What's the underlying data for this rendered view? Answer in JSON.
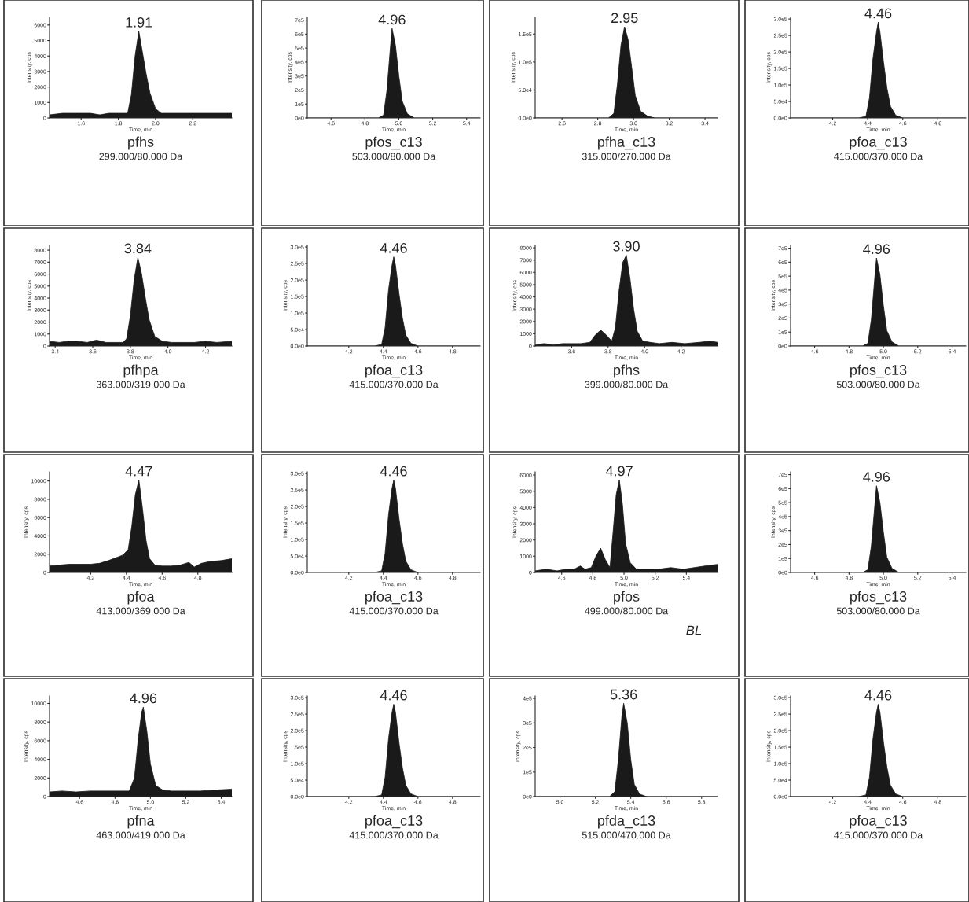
{
  "chart_data": [
    {
      "type": "area",
      "title": "pfhs",
      "subtitle": "299.000/80.000 Da",
      "xlabel": "Time, min",
      "ylabel": "Intensity, cps",
      "color": "#1a1a1a",
      "x": [
        1.43,
        1.5,
        1.55,
        1.6,
        1.65,
        1.7,
        1.75,
        1.8,
        1.83,
        1.85,
        1.87,
        1.89,
        1.91,
        1.93,
        1.95,
        1.97,
        2.0,
        2.03,
        2.06,
        2.1,
        2.15,
        2.2,
        2.25,
        2.3,
        2.35,
        2.41
      ],
      "values": [
        200,
        300,
        300,
        300,
        300,
        200,
        300,
        300,
        300,
        300,
        1500,
        4000,
        5600,
        4200,
        2800,
        1600,
        600,
        300,
        300,
        300,
        300,
        300,
        300,
        300,
        300,
        300
      ],
      "xlim": [
        1.43,
        2.41
      ],
      "ylim": [
        0,
        6500
      ],
      "xticks": [
        1.6,
        1.8,
        {
          "value": 2.0,
          "label": "2.0"
        },
        2.2
      ],
      "yticks": [
        0,
        1000,
        2000,
        3000,
        4000,
        5000,
        6000
      ],
      "annotations": [
        {
          "text": "1.91",
          "x": 1.91,
          "y": 5600
        }
      ]
    },
    {
      "type": "area",
      "title": "pfos_c13",
      "subtitle": "503.000/80.000 Da",
      "xlabel": "Time, min",
      "ylabel": "Intensity, cps",
      "color": "#1a1a1a",
      "x": [
        4.46,
        4.88,
        4.91,
        4.93,
        4.95,
        4.96,
        4.98,
        5.0,
        5.02,
        5.05,
        5.09,
        5.48
      ],
      "values": [
        0,
        0,
        20000,
        200000,
        500000,
        640000,
        520000,
        300000,
        120000,
        30000,
        0,
        0
      ],
      "xlim": [
        4.46,
        5.48
      ],
      "ylim": [
        0,
        720000
      ],
      "xticks": [
        4.6,
        4.8,
        {
          "value": 5.0,
          "label": "5.0"
        },
        5.2,
        5.4
      ],
      "yticks": [
        {
          "value": 0,
          "label": "0e0"
        },
        {
          "value": 100000,
          "label": "1e5"
        },
        {
          "value": 200000,
          "label": "2e5"
        },
        {
          "value": 300000,
          "label": "3e5"
        },
        {
          "value": 400000,
          "label": "4e5"
        },
        {
          "value": 500000,
          "label": "5e5"
        },
        {
          "value": 600000,
          "label": "6e5"
        },
        {
          "value": 700000,
          "label": "7e5"
        }
      ],
      "annotations": [
        {
          "text": "4.96",
          "x": 4.96,
          "y": 640000
        }
      ]
    },
    {
      "type": "area",
      "title": "pfha_c13",
      "subtitle": "315.000/270.000 Da",
      "xlabel": "Time, min",
      "ylabel": "Intensity, cps",
      "color": "#1a1a1a",
      "x": [
        2.45,
        2.86,
        2.89,
        2.91,
        2.93,
        2.95,
        2.97,
        2.99,
        3.01,
        3.04,
        3.08,
        3.12,
        3.47
      ],
      "values": [
        0,
        0,
        8000,
        60000,
        130000,
        163000,
        140000,
        90000,
        40000,
        12000,
        3000,
        0,
        0
      ],
      "xlim": [
        2.45,
        3.47
      ],
      "ylim": [
        0,
        180000
      ],
      "xticks": [
        2.6,
        2.8,
        {
          "value": 3.0,
          "label": "3.0"
        },
        3.2,
        3.4
      ],
      "yticks": [
        {
          "value": 0,
          "label": "0.0e0"
        },
        {
          "value": 50000,
          "label": "5.0e4"
        },
        {
          "value": 100000,
          "label": "1.0e5"
        },
        {
          "value": 150000,
          "label": "1.5e5"
        }
      ],
      "annotations": [
        {
          "text": "2.95",
          "x": 2.95,
          "y": 163000
        }
      ]
    },
    {
      "type": "area",
      "title": "pfoa_c13",
      "subtitle": "415.000/370.000 Da",
      "xlabel": "Time, min",
      "ylabel": "Intensity, cps",
      "color": "#1a1a1a",
      "x": [
        3.96,
        4.35,
        4.39,
        4.41,
        4.43,
        4.45,
        4.46,
        4.47,
        4.49,
        4.51,
        4.53,
        4.56,
        4.6,
        4.96
      ],
      "values": [
        0,
        0,
        5000,
        60000,
        180000,
        260000,
        290000,
        260000,
        170000,
        90000,
        35000,
        8000,
        0,
        0
      ],
      "xlim": [
        3.96,
        4.96
      ],
      "ylim": [
        0,
        305000
      ],
      "xticks": [
        4.2,
        4.4,
        4.6,
        4.8
      ],
      "yticks": [
        {
          "value": 0,
          "label": "0.0e0"
        },
        {
          "value": 50000,
          "label": "5.0e4"
        },
        {
          "value": 100000,
          "label": "1.0e5"
        },
        {
          "value": 150000,
          "label": "1.5e5"
        },
        {
          "value": 200000,
          "label": "2.0e5"
        },
        {
          "value": 250000,
          "label": "2.5e5"
        },
        {
          "value": 300000,
          "label": "3.0e5"
        }
      ],
      "annotations": [
        {
          "text": "4.46",
          "x": 4.46,
          "y": 290000
        }
      ]
    },
    {
      "type": "area",
      "title": "pfhpa",
      "subtitle": "363.000/319.000 Da",
      "xlabel": "Time, min",
      "ylabel": "Intensity, cps",
      "color": "#1a1a1a",
      "x": [
        3.37,
        3.42,
        3.47,
        3.52,
        3.57,
        3.62,
        3.67,
        3.72,
        3.76,
        3.78,
        3.8,
        3.82,
        3.84,
        3.86,
        3.88,
        3.9,
        3.93,
        3.97,
        4.02,
        4.08,
        4.14,
        4.2,
        4.26,
        4.34
      ],
      "values": [
        400,
        300,
        400,
        400,
        300,
        500,
        300,
        300,
        300,
        600,
        2500,
        5500,
        7400,
        6000,
        4000,
        2200,
        800,
        400,
        300,
        300,
        300,
        400,
        300,
        400
      ],
      "xlim": [
        3.37,
        4.34
      ],
      "ylim": [
        0,
        8400
      ],
      "xticks": [
        3.4,
        3.6,
        3.8,
        {
          "value": 4.0,
          "label": "4.0"
        },
        4.2
      ],
      "yticks": [
        0,
        1000,
        2000,
        3000,
        4000,
        5000,
        6000,
        7000,
        8000
      ],
      "annotations": [
        {
          "text": "3.84",
          "x": 3.84,
          "y": 7400
        }
      ]
    },
    {
      "type": "area",
      "title": "pfoa_c13",
      "subtitle": "415.000/370.000 Da",
      "xlabel": "Time, min",
      "ylabel": "Intensity, cps",
      "color": "#1a1a1a",
      "x": [
        3.96,
        4.35,
        4.39,
        4.41,
        4.43,
        4.45,
        4.46,
        4.47,
        4.49,
        4.51,
        4.53,
        4.56,
        4.6,
        4.96
      ],
      "values": [
        0,
        0,
        5000,
        55000,
        170000,
        245000,
        270000,
        245000,
        160000,
        85000,
        33000,
        8000,
        0,
        0
      ],
      "xlim": [
        3.96,
        4.96
      ],
      "ylim": [
        0,
        305000
      ],
      "xticks": [
        4.2,
        4.4,
        4.6,
        4.8
      ],
      "yticks": [
        {
          "value": 0,
          "label": "0.0e0"
        },
        {
          "value": 50000,
          "label": "5.0e4"
        },
        {
          "value": 100000,
          "label": "1.0e5"
        },
        {
          "value": 150000,
          "label": "1.5e5"
        },
        {
          "value": 200000,
          "label": "2.0e5"
        },
        {
          "value": 250000,
          "label": "2.5e5"
        },
        {
          "value": 300000,
          "label": "3.0e5"
        }
      ],
      "annotations": [
        {
          "text": "4.46",
          "x": 4.46,
          "y": 270000
        }
      ]
    },
    {
      "type": "area",
      "title": "pfhs",
      "subtitle": "399.000/80.000 Da",
      "xlabel": "Time, min",
      "ylabel": "Intensity, cps",
      "color": "#1a1a1a",
      "x": [
        3.4,
        3.45,
        3.5,
        3.55,
        3.6,
        3.65,
        3.7,
        3.73,
        3.76,
        3.79,
        3.82,
        3.84,
        3.86,
        3.88,
        3.9,
        3.92,
        3.94,
        3.96,
        3.99,
        4.03,
        4.08,
        4.15,
        4.22,
        4.3,
        4.36,
        4.4
      ],
      "values": [
        100,
        200,
        100,
        200,
        200,
        200,
        300,
        900,
        1300,
        900,
        400,
        1500,
        4500,
        6800,
        7400,
        5500,
        3000,
        1200,
        400,
        300,
        200,
        300,
        200,
        300,
        400,
        300
      ],
      "xlim": [
        3.4,
        4.4
      ],
      "ylim": [
        0,
        8200
      ],
      "xticks": [
        3.6,
        3.8,
        {
          "value": 4.0,
          "label": "4.0"
        },
        4.2
      ],
      "yticks": [
        0,
        1000,
        2000,
        3000,
        4000,
        5000,
        6000,
        7000,
        8000
      ],
      "annotations": [
        {
          "text": "3.90",
          "x": 3.9,
          "y": 7400
        }
      ]
    },
    {
      "type": "area",
      "title": "pfos_c13",
      "subtitle": "503.000/80.000 Da",
      "xlabel": "Time, min",
      "ylabel": "Intensity, cps",
      "color": "#1a1a1a",
      "x": [
        4.46,
        4.88,
        4.91,
        4.93,
        4.95,
        4.96,
        4.98,
        5.0,
        5.02,
        5.05,
        5.09,
        5.48
      ],
      "values": [
        0,
        0,
        20000,
        190000,
        490000,
        630000,
        510000,
        290000,
        110000,
        30000,
        0,
        0
      ],
      "xlim": [
        4.46,
        5.48
      ],
      "ylim": [
        0,
        720000
      ],
      "xticks": [
        4.6,
        4.8,
        {
          "value": 5.0,
          "label": "5.0"
        },
        5.2,
        5.4
      ],
      "yticks": [
        {
          "value": 0,
          "label": "0e0"
        },
        {
          "value": 100000,
          "label": "1e5"
        },
        {
          "value": 200000,
          "label": "2e5"
        },
        {
          "value": 300000,
          "label": "3e5"
        },
        {
          "value": 400000,
          "label": "4e5"
        },
        {
          "value": 500000,
          "label": "5e5"
        },
        {
          "value": 600000,
          "label": "6e5"
        },
        {
          "value": 700000,
          "label": "7e5"
        }
      ],
      "annotations": [
        {
          "text": "4.96",
          "x": 4.96,
          "y": 630000
        }
      ]
    },
    {
      "type": "area",
      "title": "pfoa",
      "subtitle": "413.000/369.000 Da",
      "xlabel": "Time, min",
      "ylabel": "Intensity, cps",
      "color": "#1a1a1a",
      "x": [
        3.97,
        4.02,
        4.08,
        4.14,
        4.2,
        4.25,
        4.3,
        4.34,
        4.38,
        4.41,
        4.43,
        4.45,
        4.47,
        4.49,
        4.51,
        4.53,
        4.56,
        4.6,
        4.65,
        4.7,
        4.75,
        4.78,
        4.82,
        4.87,
        4.93,
        4.99
      ],
      "values": [
        700,
        800,
        900,
        900,
        900,
        1000,
        1300,
        1600,
        1900,
        2500,
        5000,
        8500,
        10100,
        7000,
        3500,
        1500,
        800,
        700,
        700,
        800,
        1100,
        600,
        1000,
        1200,
        1300,
        1500
      ],
      "xlim": [
        3.97,
        4.99
      ],
      "ylim": [
        0,
        11000
      ],
      "xticks": [
        4.2,
        4.4,
        4.6,
        4.8
      ],
      "yticks": [
        0,
        2000,
        4000,
        6000,
        8000,
        10000
      ],
      "annotations": [
        {
          "text": "4.47",
          "x": 4.47,
          "y": 10100
        }
      ]
    },
    {
      "type": "area",
      "title": "pfoa_c13",
      "subtitle": "415.000/370.000 Da",
      "xlabel": "Time, min",
      "ylabel": "Intensity, cps",
      "color": "#1a1a1a",
      "x": [
        3.96,
        4.35,
        4.39,
        4.41,
        4.43,
        4.45,
        4.46,
        4.47,
        4.49,
        4.51,
        4.53,
        4.56,
        4.6,
        4.96
      ],
      "values": [
        0,
        0,
        5000,
        58000,
        175000,
        255000,
        280000,
        255000,
        165000,
        88000,
        34000,
        8000,
        0,
        0
      ],
      "xlim": [
        3.96,
        4.96
      ],
      "ylim": [
        0,
        305000
      ],
      "xticks": [
        4.2,
        4.4,
        4.6,
        4.8
      ],
      "yticks": [
        {
          "value": 0,
          "label": "0.0e0"
        },
        {
          "value": 50000,
          "label": "5.0e4"
        },
        {
          "value": 100000,
          "label": "1.0e5"
        },
        {
          "value": 150000,
          "label": "1.5e5"
        },
        {
          "value": 200000,
          "label": "2.0e5"
        },
        {
          "value": 250000,
          "label": "2.5e5"
        },
        {
          "value": 300000,
          "label": "3.0e5"
        }
      ],
      "annotations": [
        {
          "text": "4.46",
          "x": 4.46,
          "y": 280000
        }
      ]
    },
    {
      "type": "area",
      "title": "pfos",
      "subtitle": "499.000/80.000 Da",
      "xlabel": "Time, min",
      "ylabel": "Intensity, cps",
      "color": "#1a1a1a",
      "x": [
        4.43,
        4.5,
        4.57,
        4.63,
        4.68,
        4.72,
        4.75,
        4.79,
        4.82,
        4.85,
        4.88,
        4.91,
        4.93,
        4.95,
        4.97,
        4.99,
        5.01,
        5.04,
        5.08,
        5.15,
        5.22,
        5.3,
        5.38,
        5.45,
        5.52,
        5.6
      ],
      "values": [
        100,
        200,
        100,
        200,
        200,
        400,
        200,
        300,
        1000,
        1500,
        800,
        300,
        2500,
        4800,
        5700,
        4200,
        1800,
        600,
        200,
        200,
        200,
        300,
        200,
        300,
        400,
        500
      ],
      "xlim": [
        4.43,
        5.6
      ],
      "ylim": [
        0,
        6200
      ],
      "xticks": [
        4.6,
        4.8,
        {
          "value": 5.0,
          "label": "5.0"
        },
        5.2,
        5.4
      ],
      "yticks": [
        0,
        1000,
        2000,
        3000,
        4000,
        5000,
        6000
      ],
      "annotations": [
        {
          "text": "4.97",
          "x": 4.97,
          "y": 5700
        },
        "BL"
      ]
    },
    {
      "type": "area",
      "title": "pfos_c13",
      "subtitle": "503.000/80.000 Da",
      "xlabel": "Time, min",
      "ylabel": "Intensity, cps",
      "color": "#1a1a1a",
      "x": [
        4.46,
        4.88,
        4.91,
        4.93,
        4.95,
        4.96,
        4.98,
        5.0,
        5.02,
        5.05,
        5.09,
        5.48
      ],
      "values": [
        0,
        0,
        20000,
        190000,
        480000,
        620000,
        500000,
        290000,
        110000,
        30000,
        0,
        0
      ],
      "xlim": [
        4.46,
        5.48
      ],
      "ylim": [
        0,
        720000
      ],
      "xticks": [
        4.6,
        4.8,
        {
          "value": 5.0,
          "label": "5.0"
        },
        5.2,
        5.4
      ],
      "yticks": [
        {
          "value": 0,
          "label": "0e0"
        },
        {
          "value": 100000,
          "label": "1e5"
        },
        {
          "value": 200000,
          "label": "2e5"
        },
        {
          "value": 300000,
          "label": "3e5"
        },
        {
          "value": 400000,
          "label": "4e5"
        },
        {
          "value": 500000,
          "label": "5e5"
        },
        {
          "value": 600000,
          "label": "6e5"
        },
        {
          "value": 700000,
          "label": "7e5"
        }
      ],
      "annotations": [
        {
          "text": "4.96",
          "x": 4.96,
          "y": 620000
        }
      ]
    },
    {
      "type": "area",
      "title": "pfna",
      "subtitle": "463.000/419.000 Da",
      "xlabel": "Time, min",
      "ylabel": "Intensity, cps",
      "color": "#1a1a1a",
      "x": [
        4.43,
        4.5,
        4.58,
        4.66,
        4.74,
        4.82,
        4.88,
        4.91,
        4.93,
        4.95,
        4.96,
        4.98,
        5.0,
        5.03,
        5.07,
        5.12,
        5.2,
        5.28,
        5.36,
        5.46
      ],
      "values": [
        500,
        600,
        500,
        600,
        600,
        600,
        600,
        2000,
        6000,
        9000,
        9600,
        7000,
        3500,
        1200,
        700,
        600,
        600,
        600,
        700,
        800
      ],
      "xlim": [
        4.43,
        5.46
      ],
      "ylim": [
        0,
        10800
      ],
      "xticks": [
        4.6,
        4.8,
        {
          "value": 5.0,
          "label": "5.0"
        },
        5.2,
        5.4
      ],
      "yticks": [
        0,
        2000,
        4000,
        6000,
        8000,
        10000
      ],
      "annotations": [
        {
          "text": "4.96",
          "x": 4.96,
          "y": 9600
        }
      ]
    },
    {
      "type": "area",
      "title": "pfoa_c13",
      "subtitle": "415.000/370.000 Da",
      "xlabel": "Time, min",
      "ylabel": "Intensity, cps",
      "color": "#1a1a1a",
      "x": [
        3.96,
        4.35,
        4.39,
        4.41,
        4.43,
        4.45,
        4.46,
        4.47,
        4.49,
        4.51,
        4.53,
        4.56,
        4.6,
        4.96
      ],
      "values": [
        0,
        0,
        5000,
        58000,
        175000,
        255000,
        280000,
        255000,
        165000,
        88000,
        34000,
        8000,
        0,
        0
      ],
      "xlim": [
        3.96,
        4.96
      ],
      "ylim": [
        0,
        305000
      ],
      "xticks": [
        4.2,
        4.4,
        4.6,
        4.8
      ],
      "yticks": [
        {
          "value": 0,
          "label": "0.0e0"
        },
        {
          "value": 50000,
          "label": "5.0e4"
        },
        {
          "value": 100000,
          "label": "1.0e5"
        },
        {
          "value": 150000,
          "label": "1.5e5"
        },
        {
          "value": 200000,
          "label": "2.0e5"
        },
        {
          "value": 250000,
          "label": "2.5e5"
        },
        {
          "value": 300000,
          "label": "3.0e5"
        }
      ],
      "annotations": [
        {
          "text": "4.46",
          "x": 4.46,
          "y": 280000
        }
      ]
    },
    {
      "type": "area",
      "title": "pfda_c13",
      "subtitle": "515.000/470.000 Da",
      "xlabel": "Time, min",
      "ylabel": "Intensity, cps",
      "color": "#1a1a1a",
      "x": [
        4.86,
        5.28,
        5.31,
        5.33,
        5.35,
        5.36,
        5.38,
        5.4,
        5.42,
        5.45,
        5.49,
        5.89
      ],
      "values": [
        0,
        0,
        20000,
        150000,
        330000,
        380000,
        300000,
        150000,
        50000,
        10000,
        0,
        0
      ],
      "xlim": [
        4.86,
        5.89
      ],
      "ylim": [
        0,
        410000
      ],
      "xticks": [
        {
          "value": 5.0,
          "label": "5.0"
        },
        5.2,
        5.4,
        5.6,
        5.8
      ],
      "yticks": [
        {
          "value": 0,
          "label": "0e0"
        },
        {
          "value": 100000,
          "label": "1e5"
        },
        {
          "value": 200000,
          "label": "2e5"
        },
        {
          "value": 300000,
          "label": "3e5"
        },
        {
          "value": 400000,
          "label": "4e5"
        }
      ],
      "annotations": [
        {
          "text": "5.36",
          "x": 5.36,
          "y": 380000
        }
      ]
    },
    {
      "type": "area",
      "title": "pfoa_c13",
      "subtitle": "415.000/370.000 Da",
      "xlabel": "Time, min",
      "ylabel": "Intensity, cps",
      "color": "#1a1a1a",
      "x": [
        3.96,
        4.35,
        4.39,
        4.41,
        4.43,
        4.45,
        4.46,
        4.47,
        4.49,
        4.51,
        4.53,
        4.56,
        4.6,
        4.96
      ],
      "values": [
        0,
        0,
        5000,
        58000,
        175000,
        255000,
        280000,
        255000,
        165000,
        88000,
        34000,
        8000,
        0,
        0
      ],
      "xlim": [
        3.96,
        4.96
      ],
      "ylim": [
        0,
        305000
      ],
      "xticks": [
        4.2,
        4.4,
        4.6,
        4.8
      ],
      "yticks": [
        {
          "value": 0,
          "label": "0.0e0"
        },
        {
          "value": 50000,
          "label": "5.0e4"
        },
        {
          "value": 100000,
          "label": "1.0e5"
        },
        {
          "value": 150000,
          "label": "1.5e5"
        },
        {
          "value": 200000,
          "label": "2.0e5"
        },
        {
          "value": 250000,
          "label": "2.5e5"
        },
        {
          "value": 300000,
          "label": "3.0e5"
        }
      ],
      "annotations": [
        {
          "text": "4.46",
          "x": 4.46,
          "y": 280000
        }
      ]
    }
  ]
}
